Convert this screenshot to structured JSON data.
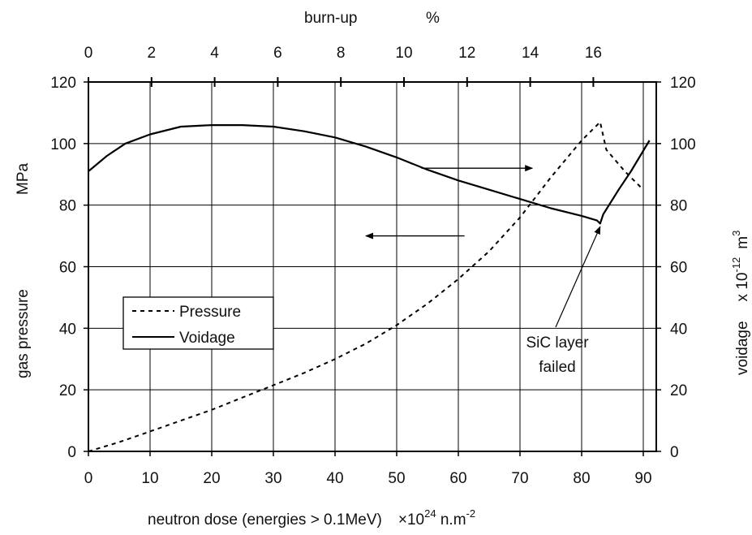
{
  "chart_data": {
    "type": "line",
    "title": "",
    "xlabel": "neutron dose (energies > 0.1MeV)",
    "xlabel_unit_prefix": "×10",
    "xlabel_unit_exp": "24",
    "xlabel_unit_mid": " n.m",
    "xlabel_unit_exp2": "-2",
    "x2label": "burn-up",
    "x2label_unit": "%",
    "ylabel_left_main": "gas pressure",
    "ylabel_left_unit": "MPa",
    "ylabel_right_main": "voidage",
    "ylabel_right_prefix": "x 10",
    "ylabel_right_exp": "-12",
    "ylabel_right_unit": "m",
    "ylabel_right_unit_exp": "3",
    "xlim": [
      0,
      92
    ],
    "x_ticks": [
      "0",
      "10",
      "20",
      "30",
      "40",
      "50",
      "60",
      "70",
      "80",
      "90"
    ],
    "x2lim": [
      0,
      18
    ],
    "x2_ticks": [
      "0",
      "2",
      "4",
      "6",
      "8",
      "10",
      "12",
      "14",
      "16"
    ],
    "ylim": [
      0,
      120
    ],
    "y_ticks": [
      "0",
      "20",
      "40",
      "60",
      "80",
      "100",
      "120"
    ],
    "y2lim": [
      0,
      120
    ],
    "y2_ticks": [
      "0",
      "20",
      "40",
      "60",
      "80",
      "100",
      "120"
    ],
    "grid": true,
    "legend": {
      "placement": "left-middle",
      "entries": [
        {
          "label": "Pressure",
          "style": "dashed"
        },
        {
          "label": "Voidage",
          "style": "solid"
        }
      ]
    },
    "series": [
      {
        "name": "Pressure",
        "axis": "left",
        "style": "dashed",
        "x": [
          0,
          5,
          10,
          15,
          20,
          25,
          30,
          35,
          40,
          45,
          50,
          55,
          60,
          65,
          70,
          75,
          80,
          83,
          84,
          87,
          90
        ],
        "y": [
          0,
          3,
          6.5,
          10,
          13.5,
          17.5,
          21.5,
          25.5,
          30,
          35,
          41,
          48,
          56,
          65,
          76,
          89,
          101,
          107,
          98,
          91,
          85
        ]
      },
      {
        "name": "Voidage",
        "axis": "right",
        "style": "solid",
        "x": [
          0,
          3,
          6,
          10,
          15,
          20,
          25,
          30,
          35,
          40,
          45,
          50,
          55,
          60,
          65,
          70,
          75,
          80,
          82.5,
          83,
          83.5,
          86,
          88,
          91
        ],
        "y": [
          91,
          96,
          100,
          103,
          105.5,
          106,
          106,
          105.5,
          104,
          102,
          99,
          95.5,
          91.5,
          88,
          85,
          82,
          79,
          76.5,
          75,
          74,
          77,
          85,
          91,
          101
        ]
      }
    ],
    "annotations": {
      "sic_line1": "SiC layer",
      "sic_line2": "failed",
      "sic_target": [
        83,
        73
      ],
      "arrow_right": {
        "from": [
          54,
          92
        ],
        "to": [
          72,
          92
        ]
      },
      "arrow_left": {
        "from": [
          61,
          70
        ],
        "to": [
          45,
          70
        ]
      }
    }
  }
}
